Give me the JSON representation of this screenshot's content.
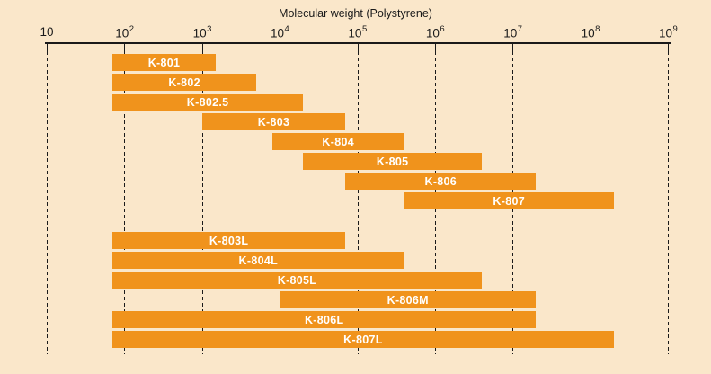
{
  "chart_data": {
    "type": "bar",
    "orientation": "horizontal-range",
    "title": "Molecular weight (Polystyrene)",
    "x_axis": {
      "scale": "log10",
      "min": 10,
      "max": 1000000000,
      "tick_exponents": [
        1,
        2,
        3,
        4,
        5,
        6,
        7,
        8,
        9
      ],
      "tick_base": "10",
      "gridlines": "vertical-dashed"
    },
    "legend": "none",
    "colors": {
      "bar": "#F0931C",
      "bar_label": "#FFFFFF",
      "background": "#FAE7CA",
      "axis": "#1A1A1A"
    },
    "groups": [
      {
        "name": "standard-columns",
        "columns": [
          {
            "label": "K-801",
            "mw_min": 70,
            "mw_max": 1500
          },
          {
            "label": "K-802",
            "mw_min": 70,
            "mw_max": 5000
          },
          {
            "label": "K-802.5",
            "mw_min": 70,
            "mw_max": 20000
          },
          {
            "label": "K-803",
            "mw_min": 1000,
            "mw_max": 70000
          },
          {
            "label": "K-804",
            "mw_min": 8000,
            "mw_max": 400000
          },
          {
            "label": "K-805",
            "mw_min": 20000,
            "mw_max": 4000000
          },
          {
            "label": "K-806",
            "mw_min": 70000,
            "mw_max": 20000000
          },
          {
            "label": "K-807",
            "mw_min": 400000,
            "mw_max": 200000000
          }
        ]
      },
      {
        "name": "linear-mixed-columns",
        "columns": [
          {
            "label": "K-803L",
            "mw_min": 70,
            "mw_max": 70000
          },
          {
            "label": "K-804L",
            "mw_min": 70,
            "mw_max": 400000
          },
          {
            "label": "K-805L",
            "mw_min": 70,
            "mw_max": 4000000
          },
          {
            "label": "K-806M",
            "mw_min": 10000,
            "mw_max": 20000000
          },
          {
            "label": "K-806L",
            "mw_min": 70,
            "mw_max": 20000000
          },
          {
            "label": "K-807L",
            "mw_min": 70,
            "mw_max": 200000000
          }
        ]
      }
    ]
  }
}
